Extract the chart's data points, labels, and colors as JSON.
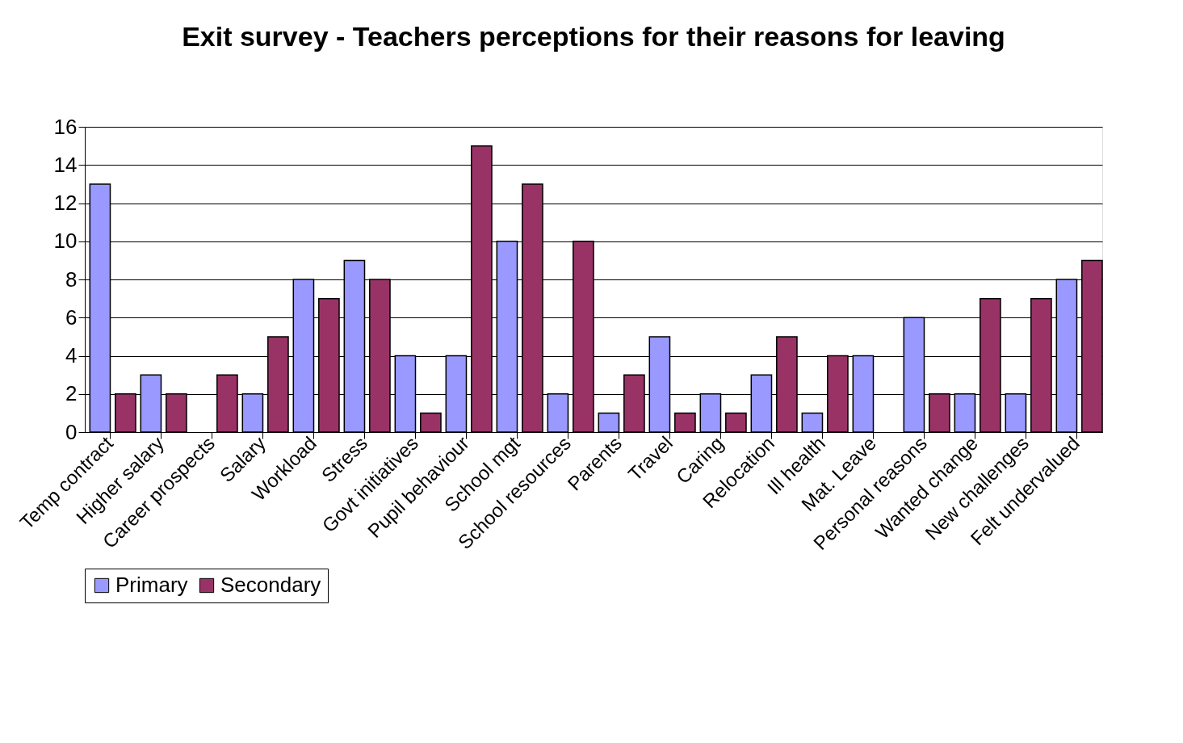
{
  "chart_data": {
    "type": "bar",
    "title": "Exit survey  - Teachers perceptions for their reasons for leaving",
    "categories": [
      "Temp contract",
      "Higher salary",
      "Career prospects",
      "Salary",
      "Workload",
      "Stress",
      "Govt initiatives",
      "Pupil behaviour",
      "School mgt",
      "School resources",
      "Parents",
      "Travel",
      "Caring",
      "Relocation",
      "Ill health",
      "Mat. Leave",
      "Personal reasons",
      "Wanted change",
      "New challenges",
      "Felt undervalued"
    ],
    "series": [
      {
        "name": "Primary",
        "color": "#9999ff",
        "values": [
          13,
          3,
          null,
          2,
          8,
          9,
          4,
          4,
          10,
          2,
          1,
          5,
          2,
          3,
          1,
          4,
          6,
          2,
          2,
          8
        ]
      },
      {
        "name": "Secondary",
        "color": "#993366",
        "values": [
          2,
          2,
          3,
          5,
          7,
          8,
          1,
          15,
          13,
          10,
          3,
          1,
          1,
          5,
          4,
          null,
          2,
          7,
          7,
          9
        ]
      }
    ],
    "ylim": [
      0,
      16
    ],
    "yticks": [
      0,
      2,
      4,
      6,
      8,
      10,
      12,
      14,
      16
    ],
    "grid": "y",
    "legend": "bottom"
  }
}
